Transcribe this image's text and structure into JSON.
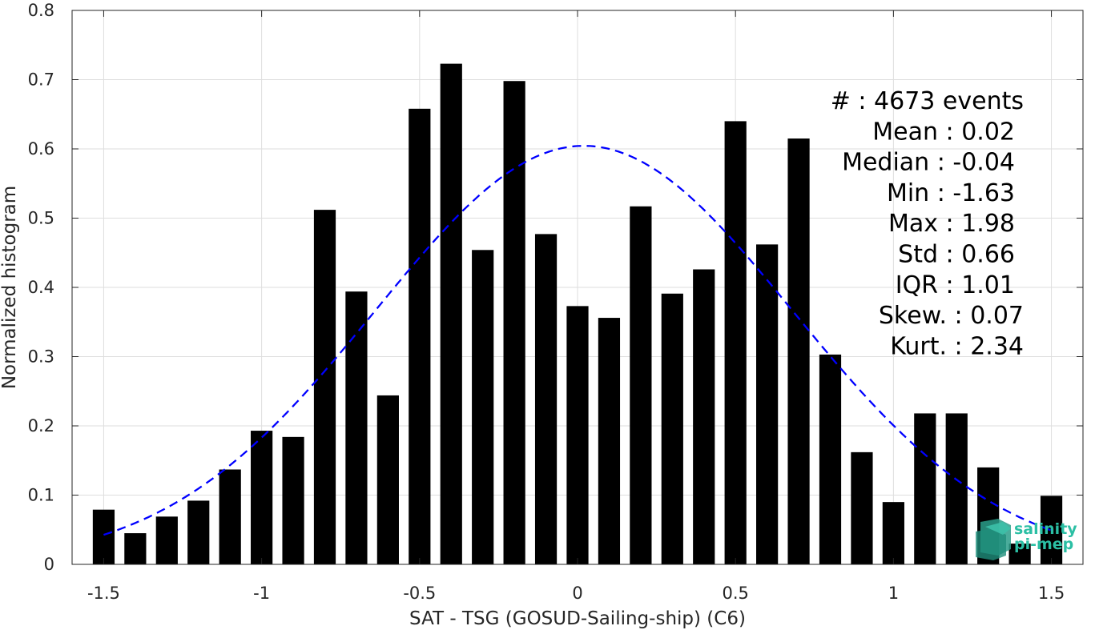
{
  "chart_data": {
    "type": "bar",
    "xlabel": "SAT - TSG (GOSUD-Sailing-ship) (C6)",
    "ylabel": "Normalized histogram",
    "xlim": [
      -1.6,
      1.6
    ],
    "ylim": [
      0,
      0.8
    ],
    "x_ticks": [
      "-1.5",
      "-1",
      "-0.5",
      "0",
      "0.5",
      "1",
      "1.5"
    ],
    "x_tick_values": [
      -1.5,
      -1,
      -0.5,
      0,
      0.5,
      1,
      1.5
    ],
    "y_ticks": [
      "0",
      "0.1",
      "0.2",
      "0.3",
      "0.4",
      "0.5",
      "0.6",
      "0.7",
      "0.8"
    ],
    "y_tick_values": [
      0,
      0.1,
      0.2,
      0.3,
      0.4,
      0.5,
      0.6,
      0.7,
      0.8
    ],
    "grid": true,
    "bar_color": "#000000",
    "fit_color": "#0000ff",
    "x": [
      -1.5,
      -1.4,
      -1.3,
      -1.2,
      -1.1,
      -1.0,
      -0.9,
      -0.8,
      -0.7,
      -0.6,
      -0.5,
      -0.4,
      -0.3,
      -0.2,
      -0.1,
      0.0,
      0.1,
      0.2,
      0.3,
      0.4,
      0.5,
      0.6,
      0.7,
      0.8,
      0.9,
      1.0,
      1.1,
      1.2,
      1.3,
      1.4,
      1.5
    ],
    "values": [
      0.079,
      0.045,
      0.069,
      0.092,
      0.137,
      0.193,
      0.184,
      0.512,
      0.394,
      0.244,
      0.658,
      0.723,
      0.454,
      0.698,
      0.477,
      0.373,
      0.356,
      0.517,
      0.391,
      0.426,
      0.64,
      0.462,
      0.615,
      0.303,
      0.162,
      0.09,
      0.218,
      0.218,
      0.14,
      0.03,
      0.099
    ],
    "fit": {
      "type": "normal",
      "style": "dashed",
      "mean": 0.02,
      "std": 0.66,
      "x_range": [
        -1.5,
        1.5
      ]
    },
    "stats_lines": [
      "#  : 4673 events",
      "Mean : 0.02",
      "Median : -0.04",
      "Min : -1.63",
      "Max : 1.98",
      "Std : 0.66",
      "IQR : 1.01",
      "Skew. : 0.07",
      "Kurt. : 2.34"
    ]
  },
  "logo": {
    "line1": "salinity",
    "line2": "pi-mep",
    "color": "#2bbfa4"
  }
}
